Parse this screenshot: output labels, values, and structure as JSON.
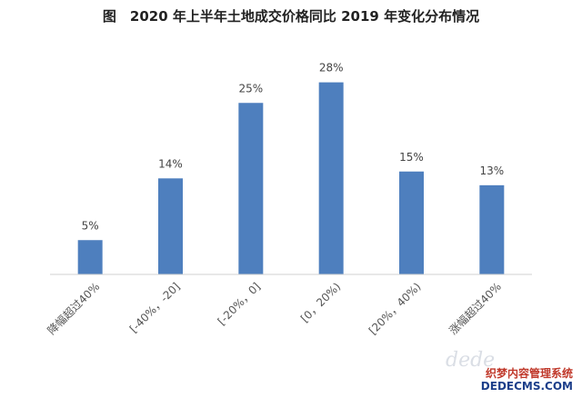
{
  "chart_data": {
    "type": "bar",
    "title": "图　2020 年上半年土地成交价格同比 2019 年变化分布情况",
    "categories": [
      "降幅超过40%",
      "[-40%，-20]",
      "[-20%，0]",
      "[0，20%)",
      "[20%，40%)",
      "涨幅超过40%"
    ],
    "values": [
      5,
      14,
      25,
      28,
      15,
      13
    ],
    "data_labels": [
      "5%",
      "14%",
      "25%",
      "28%",
      "15%",
      "13%"
    ],
    "ylim": [
      0,
      30
    ],
    "grid": false,
    "bar_color": "#4e7fbe"
  },
  "watermark": {
    "script": "dede",
    "line1": "织梦内容管理系统",
    "line2": "DEDECMS.COM"
  }
}
